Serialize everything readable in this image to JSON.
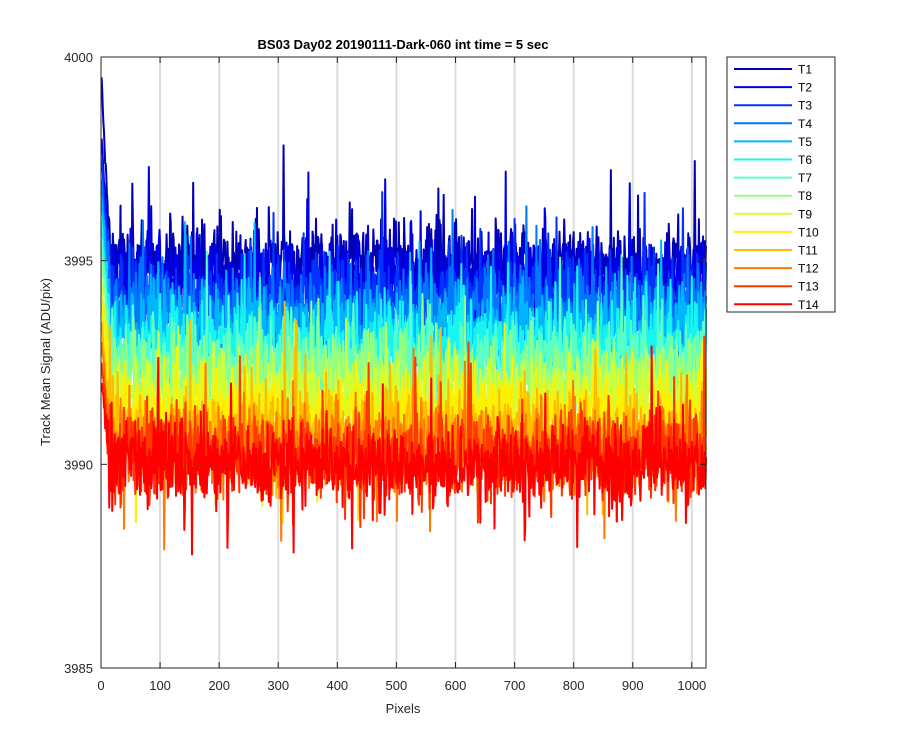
{
  "chart_data": {
    "type": "line",
    "title": "BS03 Day02 20190111-Dark-060 int time = 5 sec",
    "xlabel": "Pixels",
    "ylabel": "Track Mean Signal (ADU/pix)",
    "xlim": [
      0,
      1024
    ],
    "ylim": [
      3985,
      4000
    ],
    "xticks": [
      0,
      100,
      200,
      300,
      400,
      500,
      600,
      700,
      800,
      900,
      1000
    ],
    "yticks": [
      3985,
      3990,
      3995,
      4000
    ],
    "grid": "vertical",
    "legend_position": "outside-top-right",
    "n_points": 1024,
    "series": [
      {
        "name": "T1",
        "color": "#0000b5",
        "mean": 3995.0,
        "spread": 0.95,
        "start": 3999.5
      },
      {
        "name": "T2",
        "color": "#0000e8",
        "mean": 3994.6,
        "spread": 0.95,
        "start": 3998.0
      },
      {
        "name": "T3",
        "color": "#0033ff",
        "mean": 3994.1,
        "spread": 0.95,
        "start": 3997.5
      },
      {
        "name": "T4",
        "color": "#0077ff",
        "mean": 3993.7,
        "spread": 0.95,
        "start": 3997.0
      },
      {
        "name": "T5",
        "color": "#00b7ff",
        "mean": 3993.3,
        "spread": 0.95,
        "start": 3996.5
      },
      {
        "name": "T6",
        "color": "#18f5f0",
        "mean": 3992.9,
        "spread": 0.95,
        "start": 3996.0
      },
      {
        "name": "T7",
        "color": "#5cffc4",
        "mean": 3992.5,
        "spread": 0.95,
        "start": 3995.5
      },
      {
        "name": "T8",
        "color": "#96ff80",
        "mean": 3992.1,
        "spread": 0.95,
        "start": 3995.0
      },
      {
        "name": "T9",
        "color": "#d0ff3a",
        "mean": 3991.6,
        "spread": 0.95,
        "start": 3994.5
      },
      {
        "name": "T10",
        "color": "#ffef00",
        "mean": 3991.2,
        "spread": 0.95,
        "start": 3994.0
      },
      {
        "name": "T11",
        "color": "#ffbb00",
        "mean": 3990.8,
        "spread": 0.95,
        "start": 3993.5
      },
      {
        "name": "T12",
        "color": "#ff7a00",
        "mean": 3990.4,
        "spread": 0.95,
        "start": 3993.0
      },
      {
        "name": "T13",
        "color": "#ff3700",
        "mean": 3990.2,
        "spread": 0.95,
        "start": 3992.5
      },
      {
        "name": "T14",
        "color": "#ff0000",
        "mean": 3990.0,
        "spread": 0.95,
        "start": 3992.0
      }
    ]
  }
}
